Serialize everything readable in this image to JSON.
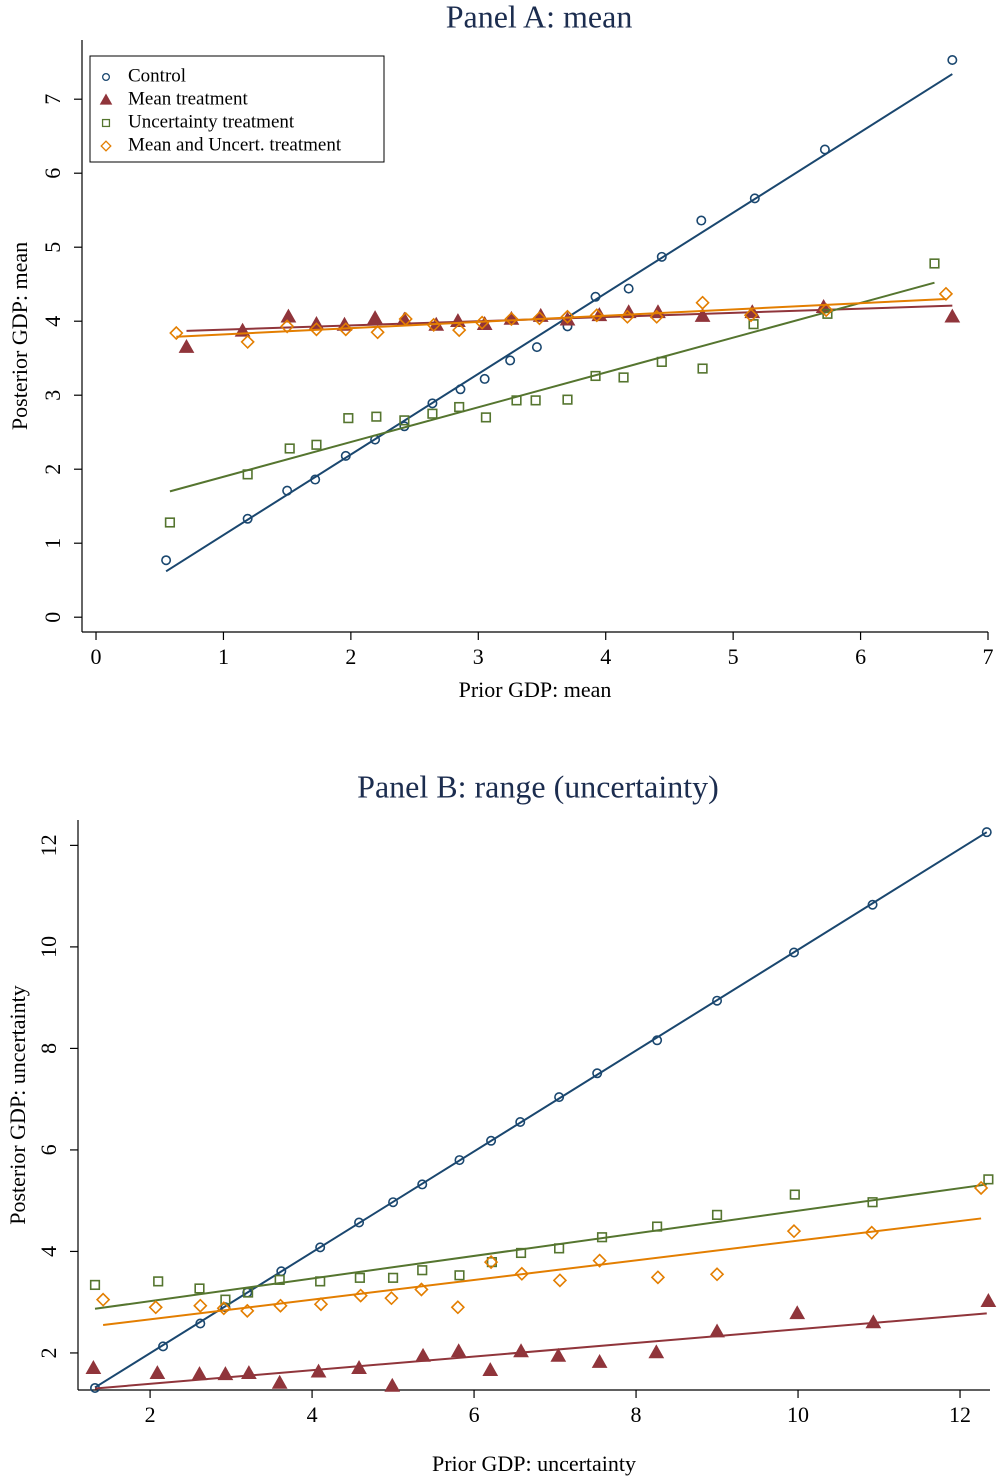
{
  "chart_data": [
    {
      "type": "scatter",
      "title": "Panel A: mean",
      "x_label": "Prior GDP: mean",
      "y_label": "Posterior GDP: mean",
      "xlim": [
        -0.11,
        7.0
      ],
      "ylim": [
        -0.2,
        7.8
      ],
      "xticks": [
        0,
        1,
        2,
        3,
        4,
        5,
        6,
        7
      ],
      "yticks": [
        0,
        1,
        2,
        3,
        4,
        5,
        6,
        7
      ],
      "legend": "top-left",
      "series": [
        {
          "name": "Control",
          "color": "#1a476f",
          "marker": "circle",
          "x": [
            0.55,
            1.19,
            1.5,
            1.72,
            1.96,
            2.19,
            2.42,
            2.64,
            2.86,
            3.05,
            3.25,
            3.46,
            3.7,
            3.92,
            4.18,
            4.44,
            4.75,
            5.17,
            5.72,
            6.72
          ],
          "values": [
            0.77,
            1.33,
            1.71,
            1.86,
            2.18,
            2.4,
            2.58,
            2.89,
            3.08,
            3.22,
            3.47,
            3.65,
            3.93,
            4.33,
            4.44,
            4.87,
            5.36,
            5.66,
            6.32,
            7.53
          ],
          "fit": {
            "x": [
              0.55,
              6.72
            ],
            "values": [
              0.62,
              7.34
            ]
          }
        },
        {
          "name": "Mean treatment",
          "color": "#90353b",
          "marker": "triangle",
          "x": [
            0.71,
            1.15,
            1.51,
            1.73,
            1.95,
            2.19,
            2.42,
            2.67,
            2.84,
            3.05,
            3.26,
            3.49,
            3.7,
            3.95,
            4.18,
            4.41,
            4.76,
            5.15,
            5.71,
            6.72
          ],
          "values": [
            3.65,
            3.87,
            4.06,
            3.96,
            3.95,
            4.04,
            4.02,
            3.95,
            4.0,
            3.96,
            4.03,
            4.07,
            4.02,
            4.08,
            4.12,
            4.12,
            4.07,
            4.12,
            4.19,
            4.06
          ],
          "fit": {
            "x": [
              0.71,
              6.72
            ],
            "values": [
              3.87,
              4.21
            ]
          }
        },
        {
          "name": "Uncertainty treatment",
          "color": "#55752f",
          "marker": "square",
          "x": [
            0.58,
            1.19,
            1.52,
            1.73,
            1.98,
            2.2,
            2.42,
            2.64,
            2.85,
            3.06,
            3.3,
            3.45,
            3.7,
            3.92,
            4.14,
            4.44,
            4.76,
            5.16,
            5.74,
            6.58
          ],
          "values": [
            1.28,
            1.93,
            2.28,
            2.33,
            2.69,
            2.71,
            2.66,
            2.75,
            2.84,
            2.7,
            2.93,
            2.93,
            2.94,
            3.26,
            3.24,
            3.45,
            3.36,
            3.96,
            4.1,
            4.78
          ],
          "fit": {
            "x": [
              0.58,
              6.58
            ],
            "values": [
              1.7,
              4.52
            ]
          }
        },
        {
          "name": "Mean and Uncert. treatment",
          "color": "#e37e00",
          "marker": "diamond",
          "x": [
            0.63,
            1.19,
            1.5,
            1.73,
            1.96,
            2.21,
            2.43,
            2.65,
            2.85,
            3.03,
            3.26,
            3.48,
            3.7,
            3.93,
            4.17,
            4.4,
            4.76,
            5.14,
            5.73,
            6.67
          ],
          "values": [
            3.84,
            3.72,
            3.93,
            3.89,
            3.89,
            3.85,
            4.03,
            3.95,
            3.88,
            3.98,
            4.03,
            4.04,
            4.06,
            4.08,
            4.06,
            4.06,
            4.25,
            4.08,
            4.15,
            4.37
          ],
          "fit": {
            "x": [
              0.63,
              6.67
            ],
            "values": [
              3.79,
              4.3
            ]
          }
        }
      ]
    },
    {
      "type": "scatter",
      "title": "Panel B: range (uncertainty)",
      "x_label": "Prior GDP: uncertainty",
      "y_label": "Posterior GDP: uncertainty",
      "xlim": [
        1.11,
        12.37
      ],
      "ylim": [
        1.27,
        12.5
      ],
      "xticks": [
        2,
        4,
        6,
        8,
        10,
        12
      ],
      "yticks": [
        2,
        4,
        6,
        8,
        10,
        12
      ],
      "series": [
        {
          "color": "#1a476f",
          "marker": "circle",
          "x": [
            1.32,
            2.16,
            2.62,
            2.93,
            3.2,
            3.62,
            4.1,
            4.58,
            5.0,
            5.36,
            5.82,
            6.21,
            6.57,
            7.05,
            7.52,
            8.26,
            9.0,
            9.95,
            10.92,
            12.33
          ],
          "values": [
            1.31,
            2.13,
            2.58,
            2.9,
            3.19,
            3.61,
            4.08,
            4.57,
            4.97,
            5.32,
            5.8,
            6.18,
            6.55,
            7.04,
            7.51,
            8.16,
            8.94,
            9.89,
            10.83,
            12.26
          ],
          "fit": {
            "x": [
              1.32,
              12.33
            ],
            "values": [
              1.32,
              12.26
            ]
          }
        },
        {
          "color": "#90353b",
          "marker": "triangle",
          "x": [
            1.3,
            2.09,
            2.61,
            2.93,
            3.22,
            3.6,
            4.08,
            4.58,
            4.99,
            5.37,
            5.81,
            6.2,
            6.58,
            7.04,
            7.55,
            8.25,
            9.0,
            9.99,
            10.93,
            12.35
          ],
          "values": [
            1.7,
            1.6,
            1.58,
            1.58,
            1.6,
            1.41,
            1.63,
            1.7,
            1.35,
            1.94,
            2.03,
            1.66,
            2.03,
            1.94,
            1.82,
            2.01,
            2.42,
            2.78,
            2.6,
            3.02
          ],
          "fit": {
            "x": [
              1.32,
              12.33
            ],
            "values": [
              1.3,
              2.78
            ]
          }
        },
        {
          "color": "#55752f",
          "marker": "square",
          "x": [
            1.32,
            2.1,
            2.61,
            2.93,
            3.21,
            3.6,
            4.1,
            4.59,
            5.0,
            5.36,
            5.82,
            6.22,
            6.58,
            7.05,
            7.58,
            8.26,
            9.0,
            9.96,
            10.92,
            12.35
          ],
          "values": [
            3.34,
            3.41,
            3.27,
            3.05,
            3.19,
            3.44,
            3.41,
            3.48,
            3.48,
            3.63,
            3.53,
            3.79,
            3.97,
            4.06,
            4.28,
            4.49,
            4.72,
            5.12,
            4.97,
            5.42
          ],
          "fit": {
            "x": [
              1.32,
              12.33
            ],
            "values": [
              2.87,
              5.32
            ]
          }
        },
        {
          "color": "#e37e00",
          "marker": "diamond",
          "x": [
            1.42,
            2.07,
            2.62,
            2.91,
            3.2,
            3.61,
            4.11,
            4.6,
            4.98,
            5.35,
            5.8,
            6.21,
            6.59,
            7.06,
            7.55,
            8.27,
            9.0,
            9.95,
            10.91,
            12.26
          ],
          "values": [
            3.05,
            2.9,
            2.93,
            2.88,
            2.83,
            2.93,
            2.96,
            3.13,
            3.08,
            3.25,
            2.9,
            3.79,
            3.56,
            3.43,
            3.82,
            3.49,
            3.55,
            4.4,
            4.37,
            5.25
          ],
          "fit": {
            "x": [
              1.42,
              12.26
            ],
            "values": [
              2.55,
              4.65
            ]
          }
        }
      ]
    }
  ]
}
